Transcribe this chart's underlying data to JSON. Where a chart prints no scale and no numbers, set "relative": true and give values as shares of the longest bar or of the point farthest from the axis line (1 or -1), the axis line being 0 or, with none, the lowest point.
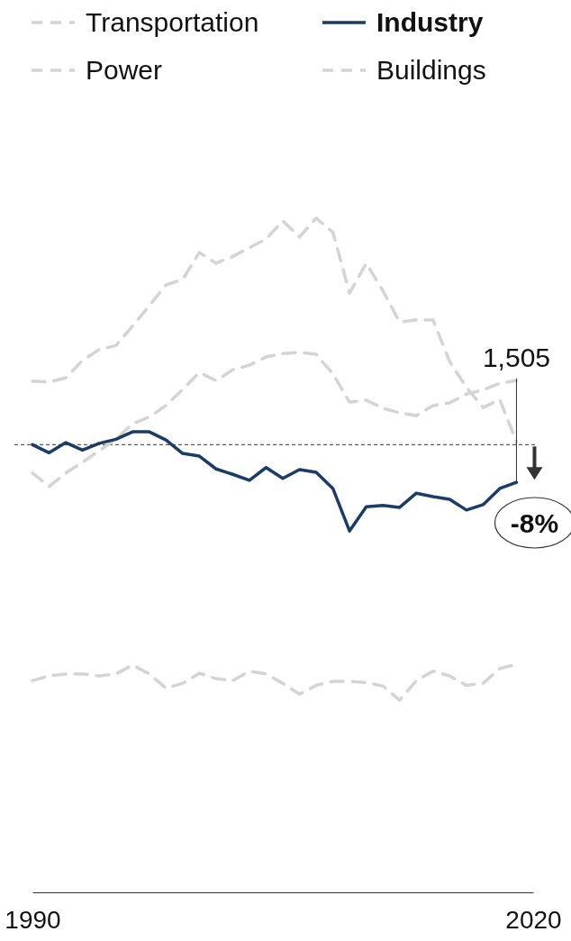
{
  "chart_data": {
    "type": "line",
    "relative": true,
    "xlim": [
      1990,
      2020
    ],
    "xticks": [
      1990,
      2020
    ],
    "legend": "top",
    "x": [
      1990,
      1991,
      1992,
      1993,
      1994,
      1995,
      1996,
      1997,
      1998,
      1999,
      2000,
      2001,
      2002,
      2003,
      2004,
      2005,
      2006,
      2007,
      2008,
      2009,
      2010,
      2011,
      2012,
      2013,
      2014,
      2015,
      2016,
      2017,
      2018,
      2019
    ],
    "series": [
      {
        "name": "Transportation",
        "color": "#d4d4d4",
        "line_style": "dashed",
        "values": [
          0.622,
          0.602,
          0.622,
          0.638,
          0.655,
          0.672,
          0.695,
          0.705,
          0.722,
          0.746,
          0.771,
          0.759,
          0.775,
          0.782,
          0.794,
          0.799,
          0.801,
          0.798,
          0.769,
          0.727,
          0.73,
          0.718,
          0.711,
          0.707,
          0.722,
          0.726,
          0.739,
          0.745,
          0.755,
          0.759
        ]
      },
      {
        "name": "Industry",
        "color": "#1b3c66",
        "line_style": "solid",
        "values": [
          0.664,
          0.652,
          0.667,
          0.656,
          0.666,
          0.672,
          0.683,
          0.683,
          0.671,
          0.651,
          0.647,
          0.628,
          0.62,
          0.611,
          0.63,
          0.614,
          0.627,
          0.623,
          0.599,
          0.536,
          0.572,
          0.574,
          0.571,
          0.592,
          0.587,
          0.583,
          0.567,
          0.575,
          0.599,
          0.608
        ]
      },
      {
        "name": "Power",
        "color": "#d4d4d4",
        "line_style": "dashed",
        "values": [
          0.758,
          0.757,
          0.763,
          0.789,
          0.805,
          0.811,
          0.84,
          0.87,
          0.901,
          0.909,
          0.949,
          0.933,
          0.943,
          0.956,
          0.969,
          0.996,
          0.972,
          1,
          0.979,
          0.889,
          0.933,
          0.892,
          0.846,
          0.849,
          0.849,
          0.787,
          0.749,
          0.719,
          0.731,
          0.668
        ]
      },
      {
        "name": "Buildings",
        "color": "#d4d4d4",
        "line_style": "dashed",
        "values": [
          0.314,
          0.321,
          0.324,
          0.324,
          0.321,
          0.324,
          0.337,
          0.324,
          0.303,
          0.31,
          0.325,
          0.317,
          0.314,
          0.328,
          0.324,
          0.31,
          0.294,
          0.307,
          0.313,
          0.313,
          0.311,
          0.306,
          0.285,
          0.314,
          0.328,
          0.321,
          0.307,
          0.31,
          0.332,
          0.338
        ]
      }
    ],
    "ref_lines": [
      {
        "axis": "y",
        "value": 0.664,
        "color": "#333333",
        "line_style": "dashed"
      }
    ],
    "annotations": [
      {
        "text": "1,505",
        "x": 2019,
        "y": 0.608
      },
      "-8%"
    ]
  }
}
